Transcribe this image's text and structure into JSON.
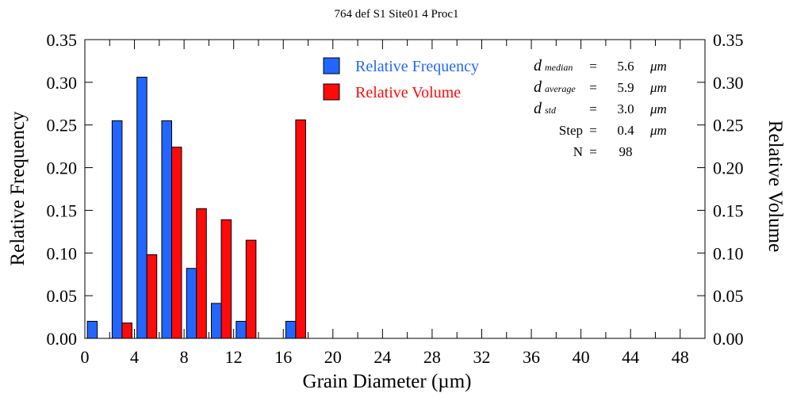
{
  "chart_data": {
    "type": "bar",
    "title": "764 def S1 Site01 4 Proc1",
    "xlabel": "Grain Diameter (µm)",
    "ylabel": "Relative Frequency",
    "y2label": "Relative Volume",
    "xlim": [
      0,
      50
    ],
    "ylim": [
      0,
      0.35
    ],
    "xticks": [
      "0",
      "4",
      "8",
      "12",
      "16",
      "20",
      "24",
      "28",
      "32",
      "36",
      "40",
      "44",
      "48"
    ],
    "yticks": [
      "0.00",
      "0.05",
      "0.10",
      "0.15",
      "0.20",
      "0.25",
      "0.30",
      "0.35"
    ],
    "bin_width": 2,
    "bins": [
      0,
      2,
      4,
      6,
      8,
      10,
      12,
      14,
      16
    ],
    "series": [
      {
        "name": "Relative Frequency",
        "color": "#2266ff",
        "values": [
          0.02,
          0.255,
          0.306,
          0.255,
          0.082,
          0.041,
          0.02,
          0,
          0.02
        ]
      },
      {
        "name": "Relative Volume",
        "color": "#ff0a0a",
        "values": [
          0,
          0.018,
          0.098,
          0.224,
          0.152,
          0.139,
          0.115,
          0,
          0.256
        ]
      }
    ],
    "legend_position": "top-center",
    "stats": [
      {
        "label": "d",
        "sub": "median",
        "eq": "=",
        "value": "5.6",
        "unit": "μm"
      },
      {
        "label": "d",
        "sub": "average",
        "eq": "=",
        "value": "5.9",
        "unit": "μm"
      },
      {
        "label": "d",
        "sub": "std",
        "eq": "=",
        "value": "3.0",
        "unit": "μm"
      },
      {
        "label": "Step",
        "sub": "",
        "eq": "=",
        "value": "0.4",
        "unit": "μm"
      },
      {
        "label": "N",
        "sub": "",
        "eq": "=",
        "value": "98",
        "unit": ""
      }
    ]
  }
}
